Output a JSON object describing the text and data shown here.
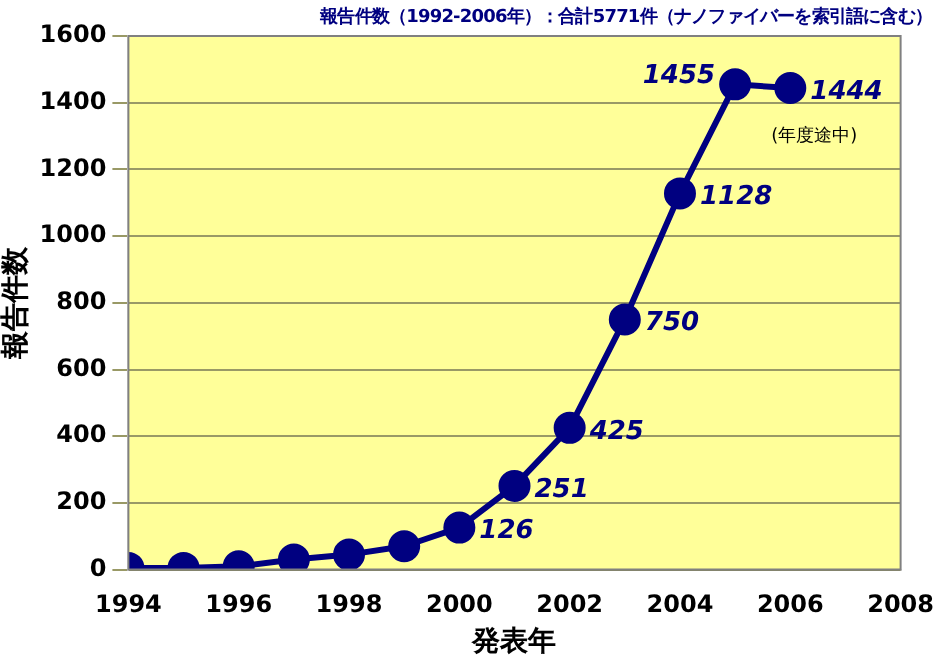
{
  "chart_data": {
    "type": "line",
    "title": "報告件数（1992-2006年）：合計5771件（ナノファイバーを索引語に含む）",
    "xlabel": "発表年",
    "ylabel": "報告件数",
    "x": [
      1994,
      1995,
      1996,
      1997,
      1998,
      1999,
      2000,
      2001,
      2002,
      2003,
      2004,
      2005,
      2006
    ],
    "series": [
      {
        "color": "#000080",
        "values": [
          5,
          5,
          10,
          30,
          45,
          70,
          126,
          251,
          425,
          750,
          1128,
          1455,
          1444
        ],
        "value_labels": [
          null,
          null,
          null,
          null,
          null,
          null,
          "126",
          "251",
          "425",
          "750",
          "1128",
          "1455",
          "1444"
        ]
      }
    ],
    "xlim": [
      1994,
      2008
    ],
    "xticks": [
      1994,
      1996,
      1998,
      2000,
      2002,
      2004,
      2006,
      2008
    ],
    "ylim": [
      0,
      1600
    ],
    "yticks": [
      0,
      200,
      400,
      600,
      800,
      1000,
      1200,
      1400,
      1600
    ],
    "grid": "y",
    "marker": "circle",
    "line_style": "solid",
    "annotations": [
      {
        "text": "(年度途中)",
        "x": 2006,
        "y": 1444
      }
    ]
  }
}
